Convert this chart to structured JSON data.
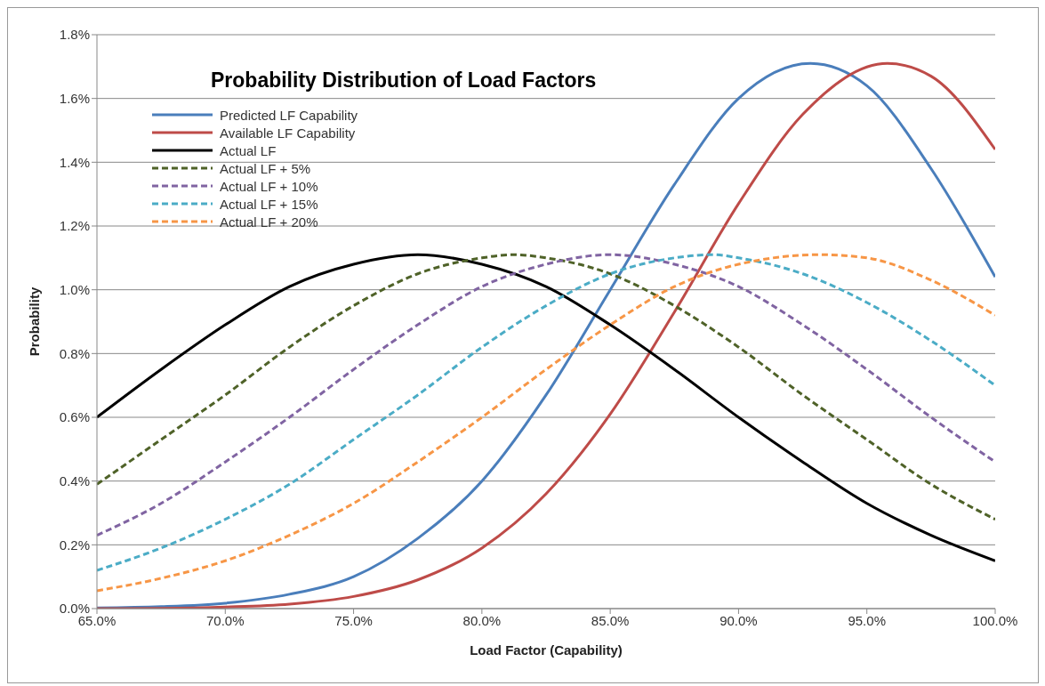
{
  "chart_data": {
    "type": "line",
    "title": "Probability Distribution of Load Factors",
    "xlabel": "Load Factor (Capability)",
    "ylabel": "Probability",
    "x": [
      65,
      67.5,
      70,
      72.5,
      75,
      77.5,
      80,
      82.5,
      85,
      87.5,
      90,
      92.5,
      95,
      97.5,
      100
    ],
    "series": [
      {
        "name": "Predicted LF Capability",
        "color": "#4a7ebb",
        "line_style": "solid",
        "x": [
          65,
          67.5,
          70,
          72.5,
          75,
          77.5,
          80,
          82.5,
          85,
          87.5,
          90,
          92.8,
          95,
          97.5,
          100
        ],
        "values": [
          0.002,
          0.006,
          0.017,
          0.045,
          0.1,
          0.22,
          0.4,
          0.67,
          1.0,
          1.33,
          1.6,
          1.71,
          1.64,
          1.38,
          1.04
        ]
      },
      {
        "name": "Available LF Capability",
        "color": "#be4b48",
        "line_style": "solid",
        "x": [
          65,
          67.5,
          70,
          72.5,
          75,
          77.5,
          80,
          82.5,
          85,
          87.5,
          90,
          92.5,
          95.8,
          97.5,
          100
        ],
        "values": [
          0.0,
          0.001,
          0.005,
          0.014,
          0.038,
          0.09,
          0.19,
          0.36,
          0.61,
          0.93,
          1.27,
          1.55,
          1.71,
          1.67,
          1.44
        ]
      },
      {
        "name": "Actual LF",
        "color": "#000000",
        "line_style": "solid",
        "values": [
          0.6,
          0.75,
          0.89,
          1.01,
          1.08,
          1.11,
          1.08,
          1.01,
          0.89,
          0.75,
          0.6,
          0.46,
          0.33,
          0.23,
          0.15
        ]
      },
      {
        "name": "Actual LF + 5%",
        "color": "#4f6228",
        "line_style": "dashed",
        "x": [
          65,
          67.5,
          70,
          72.5,
          75,
          77.5,
          80,
          81.25,
          82.5,
          85,
          87.5,
          90,
          92.5,
          95,
          97.5,
          100
        ],
        "values": [
          0.39,
          0.53,
          0.67,
          0.82,
          0.95,
          1.05,
          1.1,
          1.11,
          1.1,
          1.05,
          0.95,
          0.82,
          0.67,
          0.53,
          0.39,
          0.28
        ]
      },
      {
        "name": "Actual LF + 10%",
        "color": "#8064a2",
        "line_style": "dashed",
        "values": [
          0.23,
          0.33,
          0.46,
          0.6,
          0.75,
          0.89,
          1.01,
          1.08,
          1.11,
          1.08,
          1.01,
          0.89,
          0.75,
          0.6,
          0.46
        ]
      },
      {
        "name": "Actual LF + 15%",
        "color": "#4bacc6",
        "line_style": "dashed",
        "x": [
          65,
          67.5,
          70,
          72.5,
          75,
          77.5,
          80,
          82.5,
          85,
          87.5,
          89,
          90,
          92.5,
          95,
          97.5,
          100
        ],
        "values": [
          0.12,
          0.19,
          0.28,
          0.39,
          0.53,
          0.67,
          0.82,
          0.95,
          1.05,
          1.1,
          1.11,
          1.1,
          1.05,
          0.96,
          0.84,
          0.7
        ]
      },
      {
        "name": "Actual LF + 20%",
        "color": "#f79646",
        "line_style": "dashed",
        "x": [
          65,
          67.5,
          70,
          72.5,
          75,
          77.5,
          80,
          82.5,
          85,
          87.5,
          90,
          93.2,
          95,
          97.5,
          100
        ],
        "values": [
          0.056,
          0.095,
          0.15,
          0.23,
          0.33,
          0.46,
          0.6,
          0.75,
          0.89,
          1.01,
          1.08,
          1.11,
          1.1,
          1.03,
          0.92
        ]
      }
    ],
    "xlim": [
      65,
      100
    ],
    "xticks": [
      {
        "value": 65,
        "label": "65.0%"
      },
      {
        "value": 70,
        "label": "70.0%"
      },
      {
        "value": 75,
        "label": "75.0%"
      },
      {
        "value": 80,
        "label": "80.0%"
      },
      {
        "value": 85,
        "label": "85.0%"
      },
      {
        "value": 90,
        "label": "90.0%"
      },
      {
        "value": 95,
        "label": "95.0%"
      },
      {
        "value": 100,
        "label": "100.0%"
      }
    ],
    "ylim": [
      0,
      1.8
    ],
    "yticks": [
      {
        "value": 0,
        "label": "0.0%"
      },
      {
        "value": 0.2,
        "label": "0.2%"
      },
      {
        "value": 0.4,
        "label": "0.4%"
      },
      {
        "value": 0.6,
        "label": "0.6%"
      },
      {
        "value": 0.8,
        "label": "0.8%"
      },
      {
        "value": 1.0,
        "label": "1.0%"
      },
      {
        "value": 1.2,
        "label": "1.2%"
      },
      {
        "value": 1.4,
        "label": "1.4%"
      },
      {
        "value": 1.6,
        "label": "1.6%"
      },
      {
        "value": 1.8,
        "label": "1.8%"
      }
    ],
    "grid": "y",
    "legend": "top left",
    "marker": "none"
  }
}
